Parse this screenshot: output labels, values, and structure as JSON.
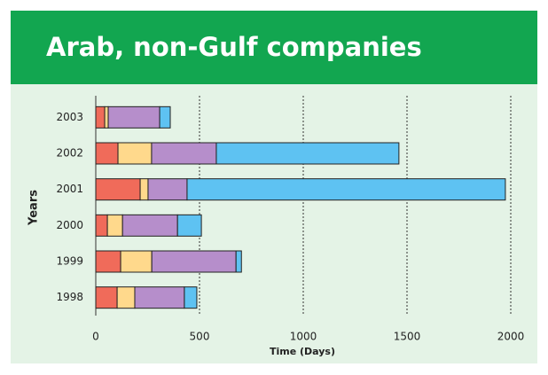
{
  "chart_data": {
    "type": "stacked_barh",
    "title": "Arab, non-Gulf companies",
    "categories": [
      "2003",
      "2002",
      "2001",
      "2000",
      "1999",
      "1998"
    ],
    "series": [
      {
        "color": "#f06b5a",
        "values": [
          43,
          107,
          214,
          56,
          120,
          103
        ]
      },
      {
        "color": "#ffd98c",
        "values": [
          17,
          162,
          38,
          73,
          150,
          85
        ]
      },
      {
        "color": "#b68ecb",
        "values": [
          248,
          312,
          188,
          265,
          406,
          239
        ]
      },
      {
        "color": "#5ec2f2",
        "values": [
          51,
          880,
          1534,
          115,
          26,
          60
        ]
      }
    ],
    "xlabel": "Time (Days)",
    "ylabel": "Years",
    "xlim": [
      0,
      2050
    ],
    "xticks": [
      0,
      500,
      1000,
      1500,
      2000
    ],
    "grid": true
  }
}
